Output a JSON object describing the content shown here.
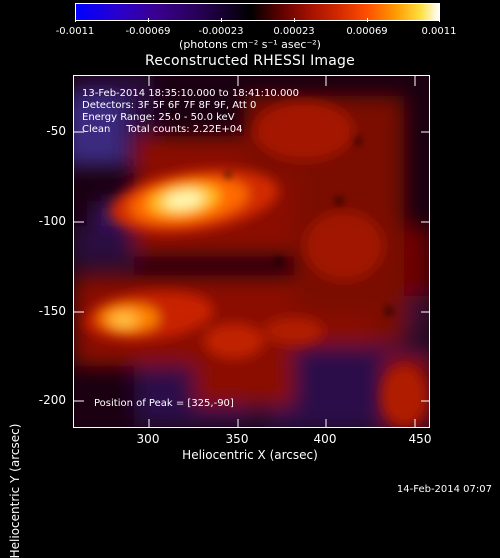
{
  "colorbar": {
    "ticks": [
      "-0.0011",
      "-0.00069",
      "-0.00023",
      "0.00023",
      "0.00069",
      "0.0011"
    ],
    "units": "(photons cm⁻² s⁻¹ asec⁻²)"
  },
  "title": "Reconstructed RHESSI Image",
  "annotations": {
    "time": "13-Feb-2014 18:35:10.000 to 18:41:10.000",
    "detectors": "Detectors: 3F 5F 6F 7F 8F 9F, Att 0",
    "energy": "Energy Range: 25.0 - 50.0 keV",
    "method": "Clean     Total counts: 2.22E+04",
    "peak": "Position of Peak = [325,-90]"
  },
  "axes": {
    "xlabel": "Heliocentric X (arcsec)",
    "ylabel": "Heliocentric Y (arcsec)",
    "xticks": [
      "300",
      "350",
      "400",
      "450"
    ],
    "yticks": [
      "-50",
      "-100",
      "-150",
      "-200"
    ]
  },
  "datestamp": "14-Feb-2014 07:07",
  "colors": {
    "background": "#000000",
    "foreground": "#ffffff"
  }
}
